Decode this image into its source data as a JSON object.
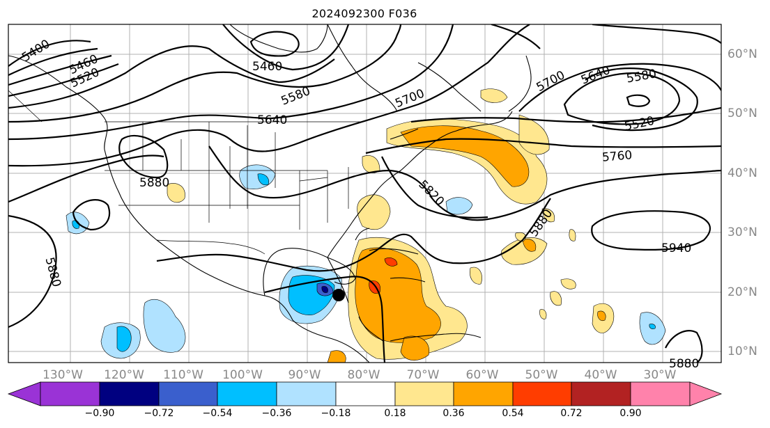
{
  "title": "2024092300 F036",
  "axes": {
    "lon_labels": [
      "130°W",
      "120°W",
      "110°W",
      "100°W",
      "90°W",
      "80°W",
      "70°W",
      "60°W",
      "50°W",
      "40°W",
      "30°W"
    ],
    "lat_labels": [
      "60°N",
      "50°N",
      "40°N",
      "30°N",
      "20°N",
      "10°N"
    ],
    "label_color": "#888888"
  },
  "contour_labels": [
    "5400",
    "5460",
    "5520",
    "5460",
    "5580",
    "5640",
    "5700",
    "5880",
    "5820",
    "5700",
    "5640",
    "5580",
    "5520",
    "5760",
    "5880",
    "5940",
    "5880",
    "5880"
  ],
  "colorbar": {
    "ticks": [
      "−0.90",
      "−0.72",
      "−0.54",
      "−0.36",
      "−0.18",
      "0.18",
      "0.36",
      "0.54",
      "0.72",
      "0.90"
    ],
    "colors": [
      "#9a33d6",
      "#000080",
      "#3a5fcd",
      "#00bfff",
      "#b0e2ff",
      "#ffffff",
      "#ffe78f",
      "#ffa500",
      "#ff3d00",
      "#b22222",
      "#ff82ab"
    ],
    "extend": "both"
  },
  "storm_marker": "filled-circle"
}
